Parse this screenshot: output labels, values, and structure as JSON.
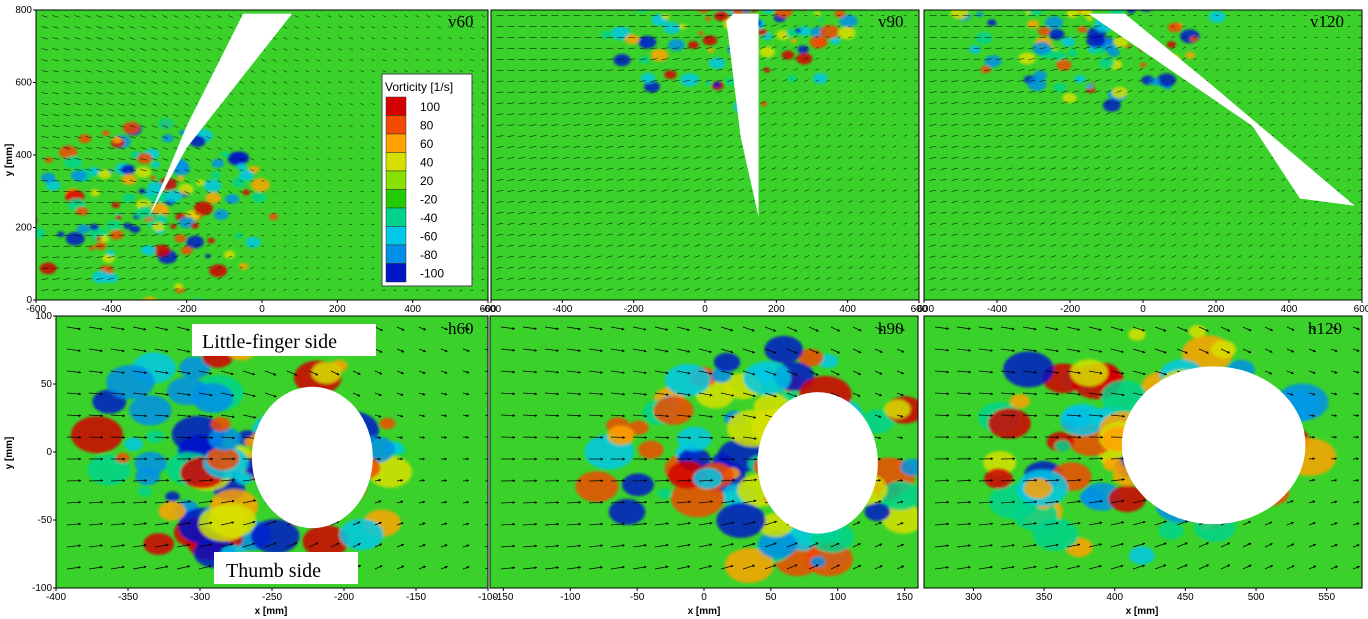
{
  "chart_data": {
    "type": "heatmap",
    "colorbar": {
      "title": "Vorticity [1/s]",
      "levels": [
        "100",
        "80",
        "60",
        "40",
        "20",
        "-20",
        "-40",
        "-60",
        "-80",
        "-100"
      ],
      "colors": [
        "#d40000",
        "#f04a00",
        "#ffa200",
        "#d6e000",
        "#8ae000",
        "#22cc00",
        "#00d48c",
        "#00c8e8",
        "#0090e8",
        "#0014c8"
      ]
    },
    "rows": [
      {
        "xticks": [
          "-600",
          "-400",
          "-200",
          "0",
          "200",
          "400",
          "600"
        ],
        "xlim": [
          -600,
          600
        ],
        "ylabel": "y [mm]",
        "yticks": [
          "0",
          "200",
          "400",
          "600",
          "800"
        ],
        "ylim": [
          0,
          800
        ],
        "panels": [
          {
            "label": "v60",
            "obstacle": [
              [
                -300,
                230
              ],
              [
                -200,
                480
              ],
              [
                -50,
                790
              ],
              [
                80,
                790
              ],
              [
                -200,
                420
              ]
            ]
          },
          {
            "label": "v90",
            "obstacle": [
              [
                80,
                790
              ],
              [
                150,
                790
              ],
              [
                150,
                230
              ],
              [
                100,
                450
              ],
              [
                60,
                770
              ]
            ]
          },
          {
            "label": "v120",
            "obstacle": [
              [
                -150,
                790
              ],
              [
                -50,
                790
              ],
              [
                180,
                600
              ],
              [
                580,
                260
              ],
              [
                430,
                280
              ],
              [
                300,
                480
              ]
            ]
          }
        ]
      },
      {
        "xlabel": "x [mm]",
        "ylabel": "y [mm]",
        "yticks": [
          "-100",
          "-50",
          "0",
          "50",
          "100"
        ],
        "ylim": [
          -100,
          100
        ],
        "panels": [
          {
            "label": "h60",
            "xticks": [
              "-400",
              "-350",
              "-300",
              "-250",
              "-200",
              "-150",
              "-100"
            ],
            "xlim": [
              -400,
              -100
            ],
            "obstacle_center": [
              -222,
              -4
            ],
            "obstacle_radius": [
              42,
              52
            ]
          },
          {
            "label": "h90",
            "xticks": [
              "-150",
              "-100",
              "-50",
              "0",
              "50",
              "100",
              "150"
            ],
            "xlim": [
              -160,
              160
            ],
            "obstacle_center": [
              85,
              -8
            ],
            "obstacle_radius": [
              45,
              52
            ]
          },
          {
            "label": "h120",
            "xticks": [
              "300",
              "350",
              "400",
              "450",
              "500",
              "550"
            ],
            "xlim": [
              265,
              575
            ],
            "obstacle_center": [
              470,
              5
            ],
            "obstacle_radius": [
              65,
              58
            ]
          }
        ]
      }
    ],
    "annotations": [
      "Little-finger side",
      "Thumb side"
    ]
  }
}
